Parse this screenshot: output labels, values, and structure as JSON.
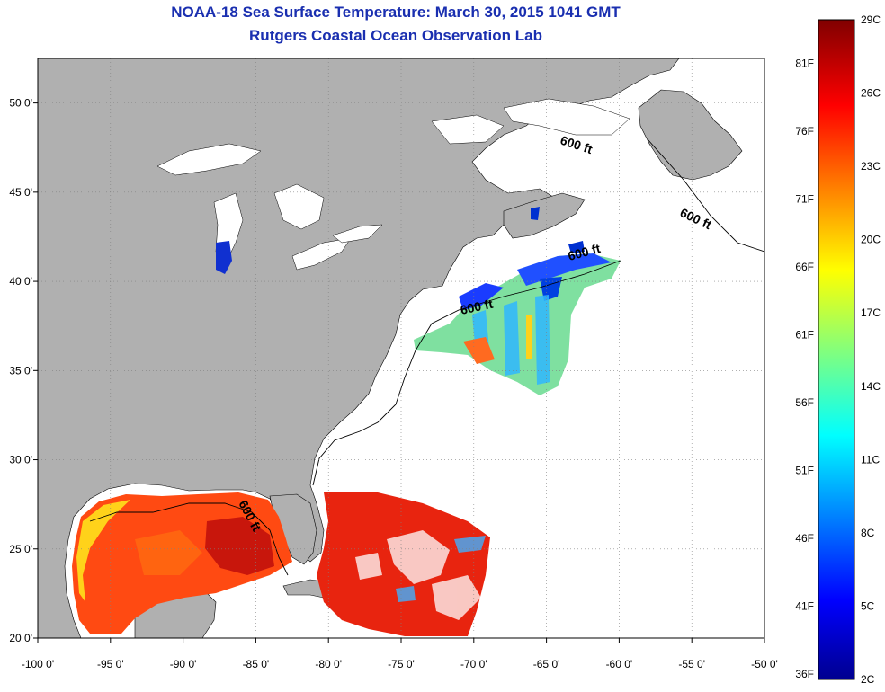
{
  "title": "NOAA-18 Sea Surface Temperature:  March 30, 2015 1041 GMT",
  "subtitle": "Rutgers Coastal Ocean Observation Lab",
  "map": {
    "lon_range": [
      -100,
      -50
    ],
    "lat_range": [
      20,
      52.5
    ],
    "lon_ticks": [
      "-100 0'",
      "-95 0'",
      "-90 0'",
      "-85 0'",
      "-80 0'",
      "-75 0'",
      "-70 0'",
      "-65 0'",
      "-60 0'",
      "-55 0'",
      "-50 0'"
    ],
    "lat_ticks": [
      "20 0'",
      "25 0'",
      "30 0'",
      "35 0'",
      "40 0'",
      "45 0'",
      "50 0'"
    ],
    "grid": "dotted",
    "land_color": "#b0b0b0",
    "water_color": "#ffffff"
  },
  "contour_labels": [
    "600 ft",
    "600 ft",
    "600 ft",
    "600 ft",
    "600 ft"
  ],
  "colorbar": {
    "celsius": [
      "2C",
      "5C",
      "8C",
      "11C",
      "14C",
      "17C",
      "20C",
      "23C",
      "26C",
      "29C"
    ],
    "fahrenheit": [
      "36F",
      "41F",
      "46F",
      "51F",
      "56F",
      "61F",
      "66F",
      "71F",
      "76F",
      "81F"
    ],
    "colors": [
      "#00008f",
      "#0000ff",
      "#0080ff",
      "#00ffff",
      "#80ff80",
      "#ffff00",
      "#ff8000",
      "#ff0000",
      "#800000"
    ]
  }
}
